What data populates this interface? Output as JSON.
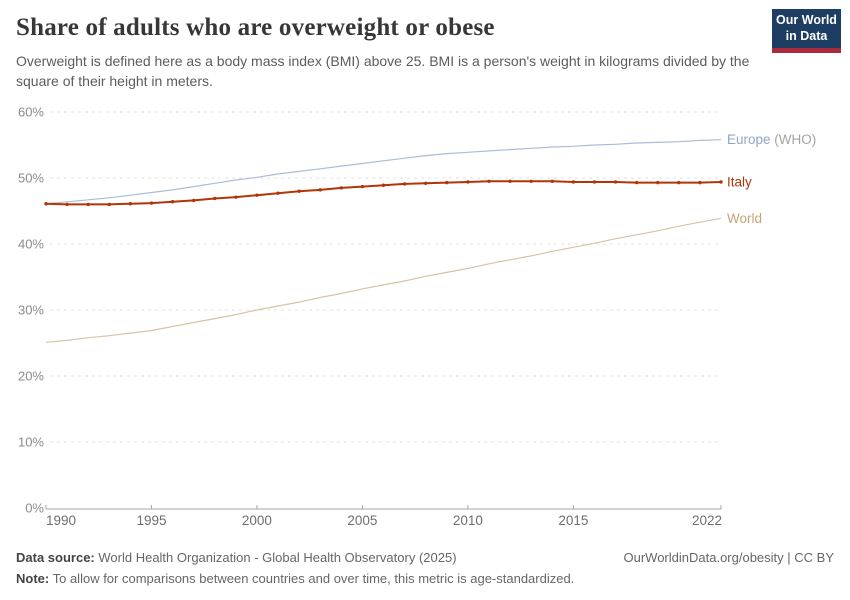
{
  "header": {
    "title": "Share of adults who are overweight or obese",
    "subtitle": "Overweight is defined here as a body mass index (BMI) above 25. BMI is a person's weight in kilograms divided by the square of their height in meters.",
    "logo": {
      "line1": "Our World",
      "line2": "in Data",
      "bg_color": "#1d3d63",
      "accent_color": "#a82b3e"
    }
  },
  "chart_data": {
    "type": "line",
    "title": "Share of adults who are overweight or obese",
    "xlabel": "",
    "ylabel": "",
    "ylim": [
      0,
      60
    ],
    "grid": "horizontal-dashed",
    "legend_position": "right-edge-labels",
    "yticks": [
      "0%",
      "10%",
      "20%",
      "30%",
      "40%",
      "50%",
      "60%"
    ],
    "xticks": [
      1990,
      1995,
      2000,
      2005,
      2010,
      2015,
      2022
    ],
    "x": [
      1990,
      1991,
      1992,
      1993,
      1994,
      1995,
      1996,
      1997,
      1998,
      1999,
      2000,
      2001,
      2002,
      2003,
      2004,
      2005,
      2006,
      2007,
      2008,
      2009,
      2010,
      2011,
      2012,
      2013,
      2014,
      2015,
      2016,
      2017,
      2018,
      2019,
      2020,
      2021,
      2022
    ],
    "series": [
      {
        "name": "Europe (WHO)",
        "label_main": "Europe",
        "label_suffix": " (WHO)",
        "line_color": "#aabdd8",
        "label_color": "#90a6c6",
        "suffix_color": "#a3a3a3",
        "markers": false,
        "line_width": 1.2,
        "values": [
          46.1,
          46.4,
          46.7,
          47.0,
          47.4,
          47.8,
          48.2,
          48.7,
          49.2,
          49.7,
          50.1,
          50.6,
          51.0,
          51.4,
          51.8,
          52.2,
          52.6,
          53.0,
          53.4,
          53.7,
          53.9,
          54.1,
          54.3,
          54.5,
          54.7,
          54.8,
          55.0,
          55.1,
          55.3,
          55.4,
          55.5,
          55.7,
          55.8
        ]
      },
      {
        "name": "World",
        "label_main": "World",
        "label_suffix": "",
        "line_color": "#d8c3a5",
        "label_color": "#c3a379",
        "suffix_color": "#c3a379",
        "markers": false,
        "line_width": 1.2,
        "values": [
          25.1,
          25.4,
          25.8,
          26.1,
          26.5,
          26.9,
          27.5,
          28.1,
          28.7,
          29.3,
          30.0,
          30.6,
          31.2,
          31.9,
          32.5,
          33.2,
          33.8,
          34.4,
          35.1,
          35.7,
          36.3,
          37.0,
          37.6,
          38.2,
          38.9,
          39.5,
          40.1,
          40.8,
          41.4,
          42.0,
          42.7,
          43.3,
          43.9
        ]
      },
      {
        "name": "Italy",
        "label_main": "Italy",
        "label_suffix": "",
        "line_color": "#b13507",
        "label_color": "#b13507",
        "suffix_color": "#b13507",
        "markers": true,
        "line_width": 2,
        "values": [
          46.1,
          46.0,
          46.0,
          46.0,
          46.1,
          46.2,
          46.4,
          46.6,
          46.9,
          47.1,
          47.4,
          47.7,
          48.0,
          48.2,
          48.5,
          48.7,
          48.9,
          49.1,
          49.2,
          49.3,
          49.4,
          49.5,
          49.5,
          49.5,
          49.5,
          49.4,
          49.4,
          49.4,
          49.3,
          49.3,
          49.3,
          49.3,
          49.4
        ]
      }
    ]
  },
  "footer": {
    "data_source_label": "Data source:",
    "data_source_value": "World Health Organization - Global Health Observatory (2025)",
    "link": "OurWorldinData.org/obesity | CC BY",
    "note_label": "Note:",
    "note_value": "To allow for comparisons between countries and over time, this metric is age-standardized."
  }
}
